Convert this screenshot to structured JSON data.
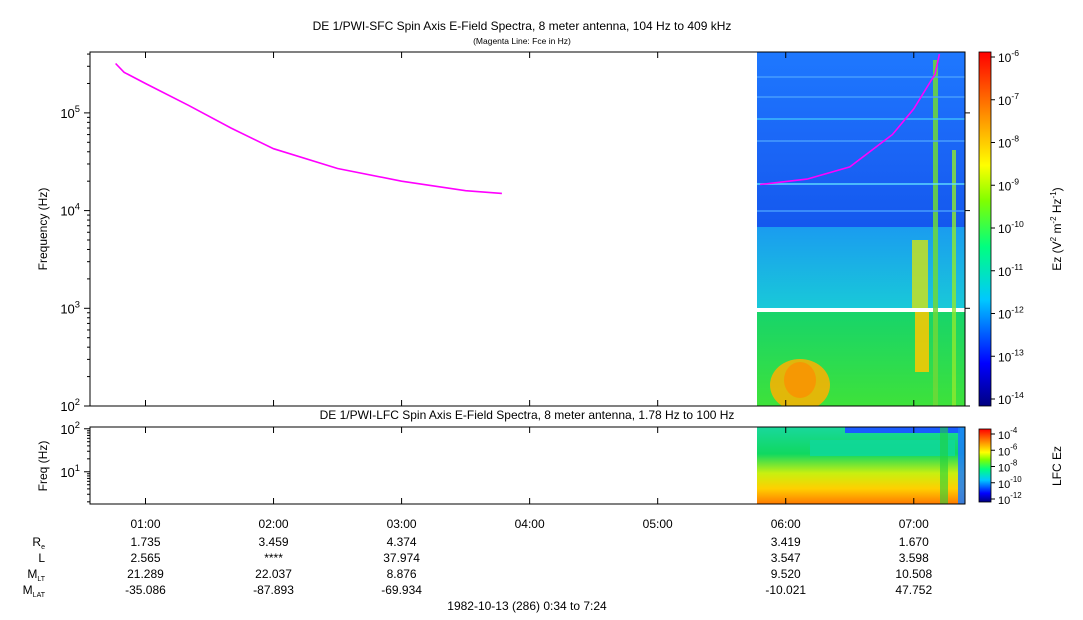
{
  "chart_data": [
    {
      "type": "heatmap",
      "title": "DE 1/PWI-SFC  Spin Axis E-Field Spectra, 8 meter antenna, 104 Hz to 409 kHz",
      "subtitle": "(Magenta Line: Fce in Hz)",
      "xlabel": "",
      "ylabel": "Frequency (Hz)",
      "yscale": "log",
      "ylim": [
        100,
        420000
      ],
      "y_ticks": [
        {
          "value": 100,
          "label": "10",
          "exp": "2"
        },
        {
          "value": 1000,
          "label": "10",
          "exp": "3"
        },
        {
          "value": 10000,
          "label": "10",
          "exp": "4"
        },
        {
          "value": 100000,
          "label": "10",
          "exp": "5"
        }
      ],
      "xlim": [
        "00:34",
        "07:24"
      ],
      "x_ticks": [
        "01:00",
        "02:00",
        "03:00",
        "04:00",
        "05:00",
        "06:00",
        "07:00"
      ],
      "data_coverage": [
        "05:48",
        "07:24"
      ],
      "fce_line": {
        "name": "Fce in Hz",
        "color": "#ff00ff",
        "x": [
          "00:46",
          "00:50",
          "01:00",
          "01:20",
          "01:40",
          "02:00",
          "02:30",
          "03:00",
          "03:30",
          "03:47"
        ],
        "y": [
          320000,
          260000,
          200000,
          120000,
          70000,
          43000,
          27000,
          20000,
          16000,
          15000
        ]
      },
      "fce_line_late": {
        "name": "Fce in Hz",
        "color": "#ff00ff",
        "x": [
          "05:48",
          "06:10",
          "06:30",
          "06:50",
          "07:00",
          "07:10",
          "07:12"
        ],
        "y": [
          18500,
          21000,
          28000,
          60000,
          110000,
          250000,
          400000
        ]
      },
      "colorbar": {
        "label": "Ez (V",
        "label_sup1": "2",
        "label_mid": " m",
        "label_sup2": "-2",
        "label_mid2": " Hz",
        "label_sup3": "-1",
        "label_end": ")",
        "scale": "log",
        "range": [
          1e-14,
          1e-06
        ],
        "ticks": [
          {
            "label": "10",
            "exp": "-6"
          },
          {
            "label": "10",
            "exp": "-7"
          },
          {
            "label": "10",
            "exp": "-8"
          },
          {
            "label": "10",
            "exp": "-9"
          },
          {
            "label": "10",
            "exp": "-10"
          },
          {
            "label": "10",
            "exp": "-11"
          },
          {
            "label": "10",
            "exp": "-12"
          },
          {
            "label": "10",
            "exp": "-13"
          },
          {
            "label": "10",
            "exp": "-14"
          }
        ]
      }
    },
    {
      "type": "heatmap",
      "title": "DE 1/PWI-LFC  Spin Axis E-Field Spectra, 8 meter antenna, 1.78 Hz to 100 Hz",
      "ylabel": "Freq (Hz)",
      "yscale": "log",
      "ylim": [
        1.78,
        110
      ],
      "y_ticks": [
        {
          "value": 10,
          "label": "10",
          "exp": "1"
        },
        {
          "value": 100,
          "label": "10",
          "exp": "2"
        }
      ],
      "data_coverage": [
        "05:48",
        "07:24"
      ],
      "colorbar": {
        "label": "LFC Ez",
        "scale": "log",
        "range": [
          1e-12,
          0.0001
        ],
        "ticks": [
          {
            "label": "10",
            "exp": "-4"
          },
          {
            "label": "10",
            "exp": "-6"
          },
          {
            "label": "10",
            "exp": "-8"
          },
          {
            "label": "10",
            "exp": "-10"
          },
          {
            "label": "10",
            "exp": "-12"
          }
        ]
      }
    }
  ],
  "ephemeris": {
    "rows": [
      {
        "label": "R",
        "sub": "e",
        "values": [
          "1.735",
          "3.459",
          "4.374",
          "",
          "",
          "3.419",
          "1.670"
        ]
      },
      {
        "label": "L",
        "sub": "",
        "values": [
          "2.565",
          "****",
          "37.974",
          "",
          "",
          "3.547",
          "3.598"
        ]
      },
      {
        "label": "M",
        "sub": "LT",
        "values": [
          "21.289",
          "22.037",
          "8.876",
          "",
          "",
          "9.520",
          "10.508"
        ]
      },
      {
        "label": "M",
        "sub": "LAT",
        "values": [
          "-35.086",
          "-87.893",
          "-69.934",
          "",
          "",
          "-10.021",
          "47.752"
        ]
      }
    ],
    "footer": "1982-10-13 (286) 0:34 to 7:24"
  }
}
